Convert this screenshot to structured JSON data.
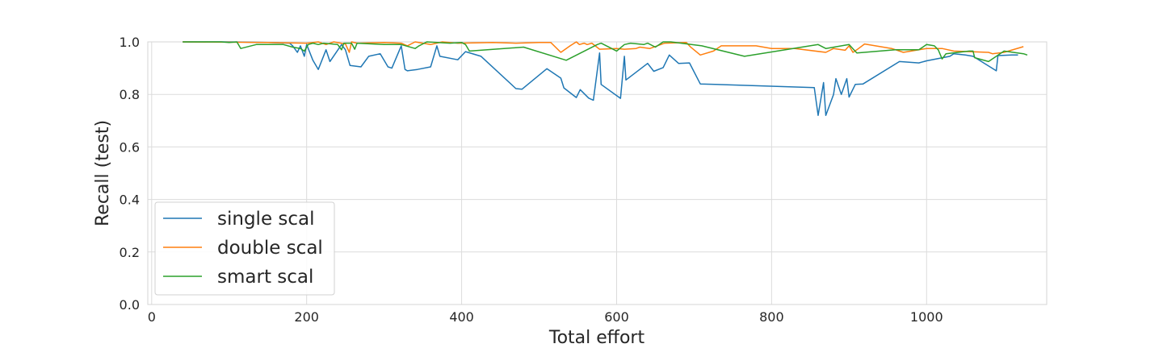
{
  "chart_data": {
    "type": "line",
    "title": "",
    "xlabel": "Total effort",
    "ylabel": "Recall (test)",
    "xlim": [
      -5,
      1155
    ],
    "ylim": [
      0.0,
      1.0
    ],
    "xticks": [
      0,
      200,
      400,
      600,
      800,
      1000
    ],
    "yticks": [
      0.0,
      0.2,
      0.4,
      0.6,
      0.8,
      1.0
    ],
    "xtick_labels": [
      "0",
      "200",
      "400",
      "600",
      "800",
      "1000"
    ],
    "ytick_labels": [
      "0.0",
      "0.2",
      "0.4",
      "0.6",
      "0.8",
      "1.0"
    ],
    "grid": true,
    "legend_position": "lower-left",
    "series": [
      {
        "name": "single scal",
        "color": "#1f77b4",
        "points": [
          [
            40,
            1.0
          ],
          [
            100,
            1.0
          ],
          [
            150,
            0.998
          ],
          [
            178,
            0.995
          ],
          [
            182,
            0.985
          ],
          [
            188,
            0.96
          ],
          [
            192,
            0.985
          ],
          [
            197,
            0.945
          ],
          [
            200,
            0.99
          ],
          [
            208,
            0.93
          ],
          [
            215,
            0.895
          ],
          [
            225,
            0.97
          ],
          [
            230,
            0.925
          ],
          [
            245,
            0.99
          ],
          [
            250,
            0.97
          ],
          [
            256,
            0.91
          ],
          [
            270,
            0.905
          ],
          [
            280,
            0.945
          ],
          [
            295,
            0.955
          ],
          [
            305,
            0.905
          ],
          [
            310,
            0.9
          ],
          [
            322,
            0.985
          ],
          [
            327,
            0.895
          ],
          [
            330,
            0.89
          ],
          [
            343,
            0.895
          ],
          [
            360,
            0.905
          ],
          [
            368,
            0.985
          ],
          [
            372,
            0.945
          ],
          [
            395,
            0.932
          ],
          [
            405,
            0.963
          ],
          [
            425,
            0.945
          ],
          [
            470,
            0.822
          ],
          [
            478,
            0.82
          ],
          [
            510,
            0.898
          ],
          [
            528,
            0.862
          ],
          [
            532,
            0.825
          ],
          [
            548,
            0.788
          ],
          [
            553,
            0.818
          ],
          [
            564,
            0.786
          ],
          [
            570,
            0.778
          ],
          [
            578,
            0.958
          ],
          [
            580,
            0.838
          ],
          [
            605,
            0.785
          ],
          [
            610,
            0.945
          ],
          [
            612,
            0.855
          ],
          [
            640,
            0.918
          ],
          [
            648,
            0.888
          ],
          [
            660,
            0.902
          ],
          [
            668,
            0.95
          ],
          [
            680,
            0.918
          ],
          [
            694,
            0.92
          ],
          [
            708,
            0.84
          ],
          [
            855,
            0.826
          ],
          [
            860,
            0.72
          ],
          [
            867,
            0.845
          ],
          [
            870,
            0.72
          ],
          [
            880,
            0.8
          ],
          [
            883,
            0.86
          ],
          [
            890,
            0.8
          ],
          [
            897,
            0.86
          ],
          [
            900,
            0.79
          ],
          [
            908,
            0.838
          ],
          [
            918,
            0.84
          ],
          [
            965,
            0.925
          ],
          [
            990,
            0.92
          ],
          [
            1000,
            0.928
          ],
          [
            1030,
            0.945
          ],
          [
            1035,
            0.955
          ],
          [
            1050,
            0.95
          ],
          [
            1060,
            0.945
          ],
          [
            1090,
            0.89
          ],
          [
            1092,
            0.948
          ],
          [
            1110,
            0.95
          ],
          [
            1118,
            0.95
          ]
        ]
      },
      {
        "name": "double scal",
        "color": "#ff7f0e",
        "points": [
          [
            40,
            1.0
          ],
          [
            150,
            0.998
          ],
          [
            200,
            0.995
          ],
          [
            215,
            1.0
          ],
          [
            225,
            0.99
          ],
          [
            235,
            1.0
          ],
          [
            250,
            0.992
          ],
          [
            255,
            0.96
          ],
          [
            258,
            1.0
          ],
          [
            265,
            0.995
          ],
          [
            300,
            0.998
          ],
          [
            322,
            0.995
          ],
          [
            330,
            0.985
          ],
          [
            340,
            1.0
          ],
          [
            360,
            0.99
          ],
          [
            375,
            1.0
          ],
          [
            395,
            0.995
          ],
          [
            440,
            0.998
          ],
          [
            470,
            0.995
          ],
          [
            500,
            0.998
          ],
          [
            515,
            0.998
          ],
          [
            528,
            0.96
          ],
          [
            540,
            0.985
          ],
          [
            548,
            1.0
          ],
          [
            552,
            0.99
          ],
          [
            558,
            0.995
          ],
          [
            562,
            0.99
          ],
          [
            568,
            0.995
          ],
          [
            578,
            0.972
          ],
          [
            600,
            0.975
          ],
          [
            610,
            0.972
          ],
          [
            625,
            0.975
          ],
          [
            630,
            0.98
          ],
          [
            643,
            0.975
          ],
          [
            662,
            0.995
          ],
          [
            690,
            0.998
          ],
          [
            695,
            0.982
          ],
          [
            708,
            0.95
          ],
          [
            725,
            0.965
          ],
          [
            735,
            0.985
          ],
          [
            780,
            0.985
          ],
          [
            800,
            0.975
          ],
          [
            830,
            0.975
          ],
          [
            870,
            0.96
          ],
          [
            880,
            0.975
          ],
          [
            895,
            0.968
          ],
          [
            900,
            0.985
          ],
          [
            905,
            0.96
          ],
          [
            910,
            0.97
          ],
          [
            920,
            0.992
          ],
          [
            955,
            0.975
          ],
          [
            970,
            0.96
          ],
          [
            1000,
            0.975
          ],
          [
            1010,
            0.975
          ],
          [
            1020,
            0.975
          ],
          [
            1035,
            0.965
          ],
          [
            1080,
            0.96
          ],
          [
            1085,
            0.955
          ],
          [
            1100,
            0.96
          ],
          [
            1125,
            0.982
          ]
        ]
      },
      {
        "name": "smart scal",
        "color": "#2ca02c",
        "points": [
          [
            40,
            1.0
          ],
          [
            90,
            1.0
          ],
          [
            100,
            0.998
          ],
          [
            110,
            1.0
          ],
          [
            115,
            0.975
          ],
          [
            135,
            0.99
          ],
          [
            170,
            0.99
          ],
          [
            182,
            0.98
          ],
          [
            192,
            0.975
          ],
          [
            197,
            0.965
          ],
          [
            202,
            0.99
          ],
          [
            208,
            0.995
          ],
          [
            215,
            0.99
          ],
          [
            222,
            0.995
          ],
          [
            240,
            0.99
          ],
          [
            245,
            0.97
          ],
          [
            248,
            0.995
          ],
          [
            258,
            0.995
          ],
          [
            262,
            0.972
          ],
          [
            265,
            0.995
          ],
          [
            300,
            0.99
          ],
          [
            322,
            0.99
          ],
          [
            340,
            0.975
          ],
          [
            345,
            0.985
          ],
          [
            355,
            1.0
          ],
          [
            385,
            0.995
          ],
          [
            400,
            0.998
          ],
          [
            405,
            0.99
          ],
          [
            410,
            0.965
          ],
          [
            480,
            0.98
          ],
          [
            535,
            0.93
          ],
          [
            575,
            0.99
          ],
          [
            580,
            0.995
          ],
          [
            600,
            0.965
          ],
          [
            610,
            0.99
          ],
          [
            618,
            0.995
          ],
          [
            635,
            0.99
          ],
          [
            640,
            0.995
          ],
          [
            650,
            0.98
          ],
          [
            660,
            1.0
          ],
          [
            670,
            1.0
          ],
          [
            710,
            0.985
          ],
          [
            765,
            0.945
          ],
          [
            860,
            0.99
          ],
          [
            870,
            0.975
          ],
          [
            900,
            0.99
          ],
          [
            910,
            0.958
          ],
          [
            960,
            0.97
          ],
          [
            990,
            0.97
          ],
          [
            1000,
            0.99
          ],
          [
            1010,
            0.985
          ],
          [
            1015,
            0.97
          ],
          [
            1020,
            0.935
          ],
          [
            1025,
            0.955
          ],
          [
            1055,
            0.965
          ],
          [
            1060,
            0.965
          ],
          [
            1062,
            0.94
          ],
          [
            1080,
            0.925
          ],
          [
            1090,
            0.945
          ],
          [
            1100,
            0.965
          ],
          [
            1125,
            0.955
          ],
          [
            1130,
            0.95
          ]
        ]
      }
    ]
  }
}
